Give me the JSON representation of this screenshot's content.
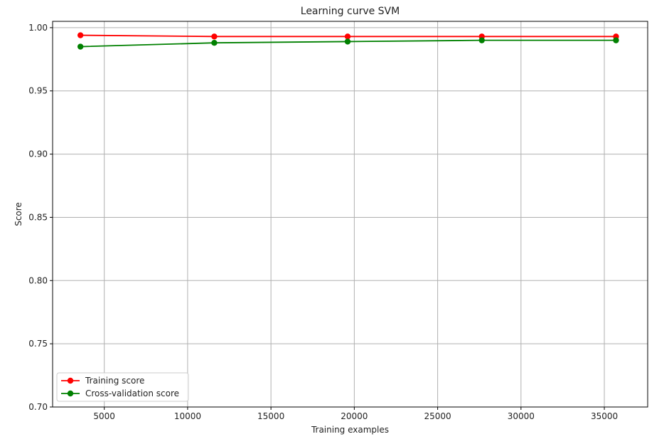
{
  "chart_data": {
    "type": "line",
    "title": "Learning curve SVM",
    "xlabel": "Training examples",
    "ylabel": "Score",
    "xlim": [
      1900,
      37600
    ],
    "ylim": [
      0.7,
      1.005
    ],
    "xticks": [
      5000,
      10000,
      15000,
      20000,
      25000,
      30000,
      35000
    ],
    "yticks": [
      0.7,
      0.75,
      0.8,
      0.85,
      0.9,
      0.95,
      1.0
    ],
    "ytick_labels": [
      "0.70",
      "0.75",
      "0.80",
      "0.85",
      "0.90",
      "0.95",
      "1.00"
    ],
    "grid": true,
    "legend_position": "lower-left",
    "series": [
      {
        "name": "Training score",
        "color": "#ff0000",
        "marker": "circle",
        "x": [
          3570,
          11600,
          19600,
          27650,
          35700
        ],
        "y": [
          0.994,
          0.993,
          0.993,
          0.993,
          0.993
        ]
      },
      {
        "name": "Cross-validation score",
        "color": "#008000",
        "marker": "circle",
        "x": [
          3570,
          11600,
          19600,
          27650,
          35700
        ],
        "y": [
          0.985,
          0.988,
          0.989,
          0.99,
          0.99
        ]
      }
    ]
  }
}
